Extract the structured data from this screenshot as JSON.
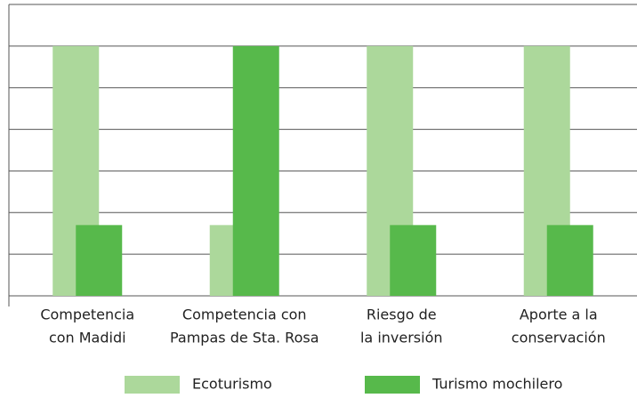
{
  "chart_data": {
    "type": "bar",
    "categories": [
      [
        "Competencia",
        "con Madidi"
      ],
      [
        "Competencia con",
        "Pampas de Sta. Rosa"
      ],
      [
        "Riesgo de",
        "la inversión"
      ],
      [
        "Aporte a la",
        "conservación"
      ]
    ],
    "series": [
      {
        "name": "Ecoturismo",
        "color": "#acd89b",
        "values": [
          6,
          1.7,
          6,
          6
        ]
      },
      {
        "name": "Turismo mochilero",
        "color": "#57b94b",
        "values": [
          1.7,
          6,
          1.7,
          1.7
        ]
      }
    ],
    "ylim": [
      0,
      7
    ],
    "yticks": [
      0,
      1,
      2,
      3,
      4,
      5,
      6,
      7
    ],
    "grid": true
  }
}
